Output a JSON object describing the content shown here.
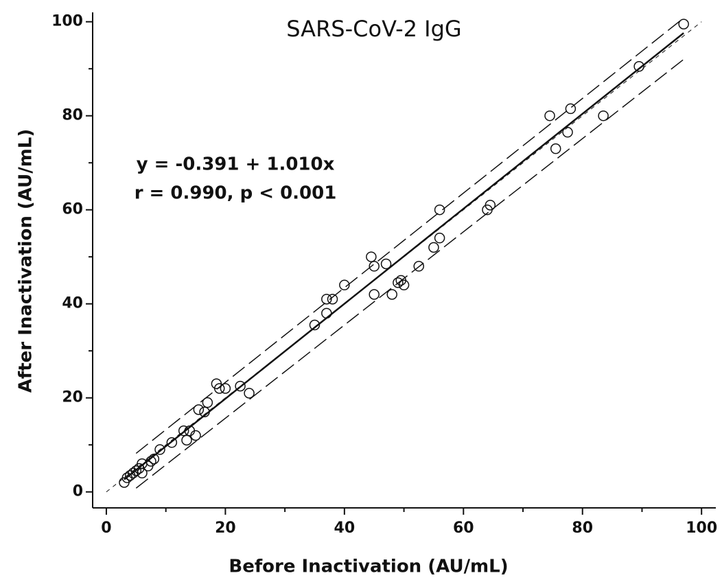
{
  "chart_data": {
    "type": "scatter",
    "title": "SARS-CoV-2 IgG",
    "x_label": "Before Inactivation (AU/mL)",
    "y_label": "After Inactivation (AU/mL)",
    "annotations": [
      "y = -0.391 + 1.010x",
      "r = 0.990, p < 0.001"
    ],
    "xlim": [
      -2.3,
      102.4
    ],
    "ylim": [
      -3.4,
      102
    ],
    "xticks": [
      0,
      20,
      40,
      60,
      80,
      100
    ],
    "yticks": [
      0,
      20,
      40,
      60,
      80,
      100
    ],
    "xminorticks": [
      10,
      30,
      50,
      70,
      90
    ],
    "yminorticks": [
      10,
      30,
      50,
      70,
      90
    ],
    "marker_color": "#111111",
    "x": [
      3,
      3.5,
      4,
      4.5,
      5,
      5.5,
      6,
      6,
      7,
      7.5,
      8,
      9,
      11,
      13,
      13.5,
      14,
      15,
      15.5,
      16.5,
      17,
      18.5,
      19,
      20,
      22.5,
      24,
      35,
      37,
      37,
      38,
      40,
      44.5,
      45,
      45,
      47,
      48,
      49,
      49.5,
      50,
      52.5,
      55,
      56,
      56,
      64,
      64.5,
      74.5,
      75.5,
      77.5,
      78,
      83.5,
      89.5,
      97
    ],
    "values": [
      2,
      3,
      3.5,
      4,
      4.5,
      5,
      4,
      6,
      5.5,
      6.5,
      7,
      9,
      10.5,
      13,
      11,
      13,
      12,
      17.5,
      17,
      19,
      23,
      22,
      22,
      22.5,
      21,
      35.5,
      38,
      41,
      41,
      44,
      50,
      48,
      42,
      48.5,
      42,
      44.5,
      45,
      44,
      48,
      52,
      54,
      60,
      60,
      61,
      80,
      73,
      76.5,
      81.5,
      80,
      90.5,
      99.5
    ],
    "lines": [
      {
        "x": [
          3,
          97
        ],
        "y": [
          2.64,
          97.6
        ],
        "style": "solid"
      },
      {
        "x": [
          5,
          97
        ],
        "y": [
          8.2,
          100.8
        ],
        "style": "dashed"
      },
      {
        "x": [
          5,
          97
        ],
        "y": [
          0.8,
          92
        ],
        "style": "dashed"
      },
      {
        "x": [
          0,
          100
        ],
        "y": [
          0,
          100
        ],
        "style": "dotted"
      }
    ]
  }
}
